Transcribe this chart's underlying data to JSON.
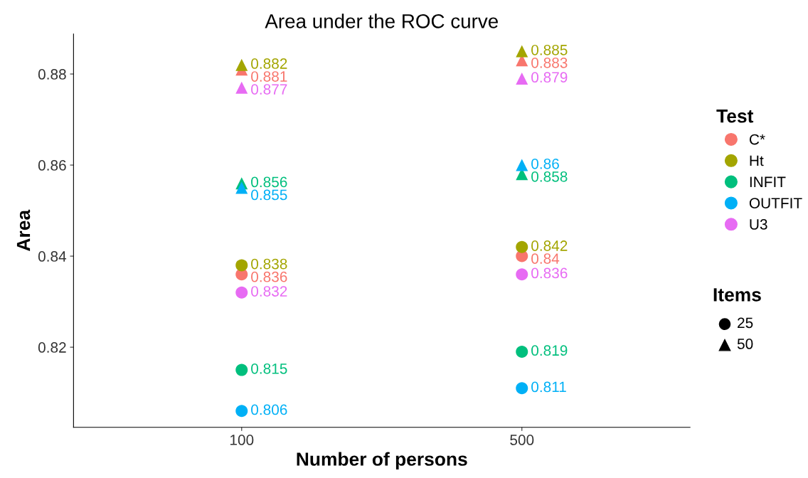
{
  "chart_data": {
    "type": "scatter",
    "title": "Area under the ROC curve",
    "xlabel": "Number of persons",
    "ylabel": "Area",
    "categories": [
      "100",
      "500"
    ],
    "ylim": [
      0.8024,
      0.8888
    ],
    "yticks": [
      0.82,
      0.84,
      0.86,
      0.88
    ],
    "grid": false,
    "legend": "right",
    "legend_title": "Test",
    "data_labels": true,
    "annotations": [
      "Items",
      "25",
      "50"
    ],
    "series": [
      {
        "name": "C*",
        "color": "#f8766d",
        "marker": "circle",
        "values": [
          0.836,
          0.84
        ]
      },
      {
        "name": "Ht",
        "color": "#a3a500",
        "marker": "circle",
        "values": [
          0.838,
          0.842
        ]
      },
      {
        "name": "INFIT",
        "color": "#00bf7d",
        "marker": "circle",
        "values": [
          0.815,
          0.819
        ]
      },
      {
        "name": "OUTFIT",
        "color": "#00b0f6",
        "marker": "circle",
        "values": [
          0.806,
          0.811
        ]
      },
      {
        "name": "U3",
        "color": "#e76bf3",
        "marker": "circle",
        "values": [
          0.832,
          0.836
        ]
      },
      {
        "color": "#f8766d",
        "marker": "triangle",
        "values": [
          0.881,
          0.883
        ]
      },
      {
        "color": "#a3a500",
        "marker": "triangle",
        "values": [
          0.882,
          0.885
        ]
      },
      {
        "color": "#00bf7d",
        "marker": "triangle",
        "values": [
          0.856,
          0.858
        ]
      },
      {
        "color": "#00b0f6",
        "marker": "triangle",
        "values": [
          0.855,
          0.86
        ]
      },
      {
        "color": "#e76bf3",
        "marker": "triangle",
        "values": [
          0.877,
          0.879
        ]
      }
    ]
  }
}
